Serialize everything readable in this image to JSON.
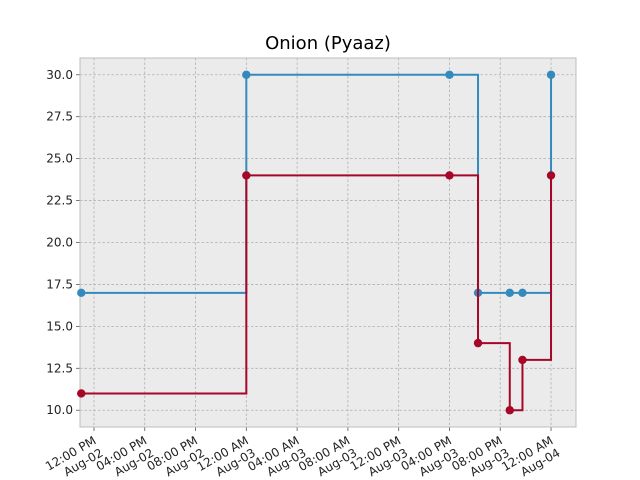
{
  "chart_data": {
    "type": "line",
    "title": "Onion (Pyaaz)",
    "xlabel": "",
    "ylabel": "",
    "x_axis_type": "datetime",
    "xlim": [
      "2025-08-02 10:54",
      "2025-08-04 01:58"
    ],
    "ylim": [
      9.0,
      31.0
    ],
    "grid": true,
    "background": "#ebebeb",
    "step_style": "post",
    "x_ticks": [
      {
        "t": "2025-08-02 12:00",
        "lines": [
          "12:00 PM",
          "Aug-02"
        ]
      },
      {
        "t": "2025-08-02 16:00",
        "lines": [
          "04:00 PM",
          "Aug-02"
        ]
      },
      {
        "t": "2025-08-02 20:00",
        "lines": [
          "08:00 PM",
          "Aug-02"
        ]
      },
      {
        "t": "2025-08-03 00:00",
        "lines": [
          "12:00 AM",
          "Aug-03"
        ]
      },
      {
        "t": "2025-08-03 04:00",
        "lines": [
          "04:00 AM",
          "Aug-03"
        ]
      },
      {
        "t": "2025-08-03 08:00",
        "lines": [
          "08:00 AM",
          "Aug-03"
        ]
      },
      {
        "t": "2025-08-03 12:00",
        "lines": [
          "12:00 PM",
          "Aug-03"
        ]
      },
      {
        "t": "2025-08-03 16:00",
        "lines": [
          "04:00 PM",
          "Aug-03"
        ]
      },
      {
        "t": "2025-08-03 20:00",
        "lines": [
          "08:00 PM",
          "Aug-03"
        ]
      },
      {
        "t": "2025-08-04 00:00",
        "lines": [
          "12:00 AM",
          "Aug-04"
        ]
      }
    ],
    "y_ticks": [
      10.0,
      12.5,
      15.0,
      17.5,
      20.0,
      22.5,
      25.0,
      27.5,
      30.0
    ],
    "y_tick_labels": [
      "10.0",
      "12.5",
      "15.0",
      "17.5",
      "20.0",
      "22.5",
      "25.0",
      "27.5",
      "30.0"
    ],
    "series": [
      {
        "color": "#348abd",
        "points": [
          {
            "t": "2025-08-02 11:00",
            "y": 17
          },
          {
            "t": "2025-08-03 00:00",
            "y": 30
          },
          {
            "t": "2025-08-03 16:00",
            "y": 30
          },
          {
            "t": "2025-08-03 18:15",
            "y": 17
          },
          {
            "t": "2025-08-03 20:45",
            "y": 17
          },
          {
            "t": "2025-08-03 21:45",
            "y": 17
          },
          {
            "t": "2025-08-04 00:00",
            "y": 30
          }
        ]
      },
      {
        "color": "#a60628",
        "points": [
          {
            "t": "2025-08-02 11:00",
            "y": 11
          },
          {
            "t": "2025-08-03 00:00",
            "y": 24
          },
          {
            "t": "2025-08-03 16:00",
            "y": 24
          },
          {
            "t": "2025-08-03 18:15",
            "y": 14
          },
          {
            "t": "2025-08-03 20:45",
            "y": 10
          },
          {
            "t": "2025-08-03 21:45",
            "y": 13
          },
          {
            "t": "2025-08-04 00:00",
            "y": 24
          }
        ]
      }
    ]
  }
}
